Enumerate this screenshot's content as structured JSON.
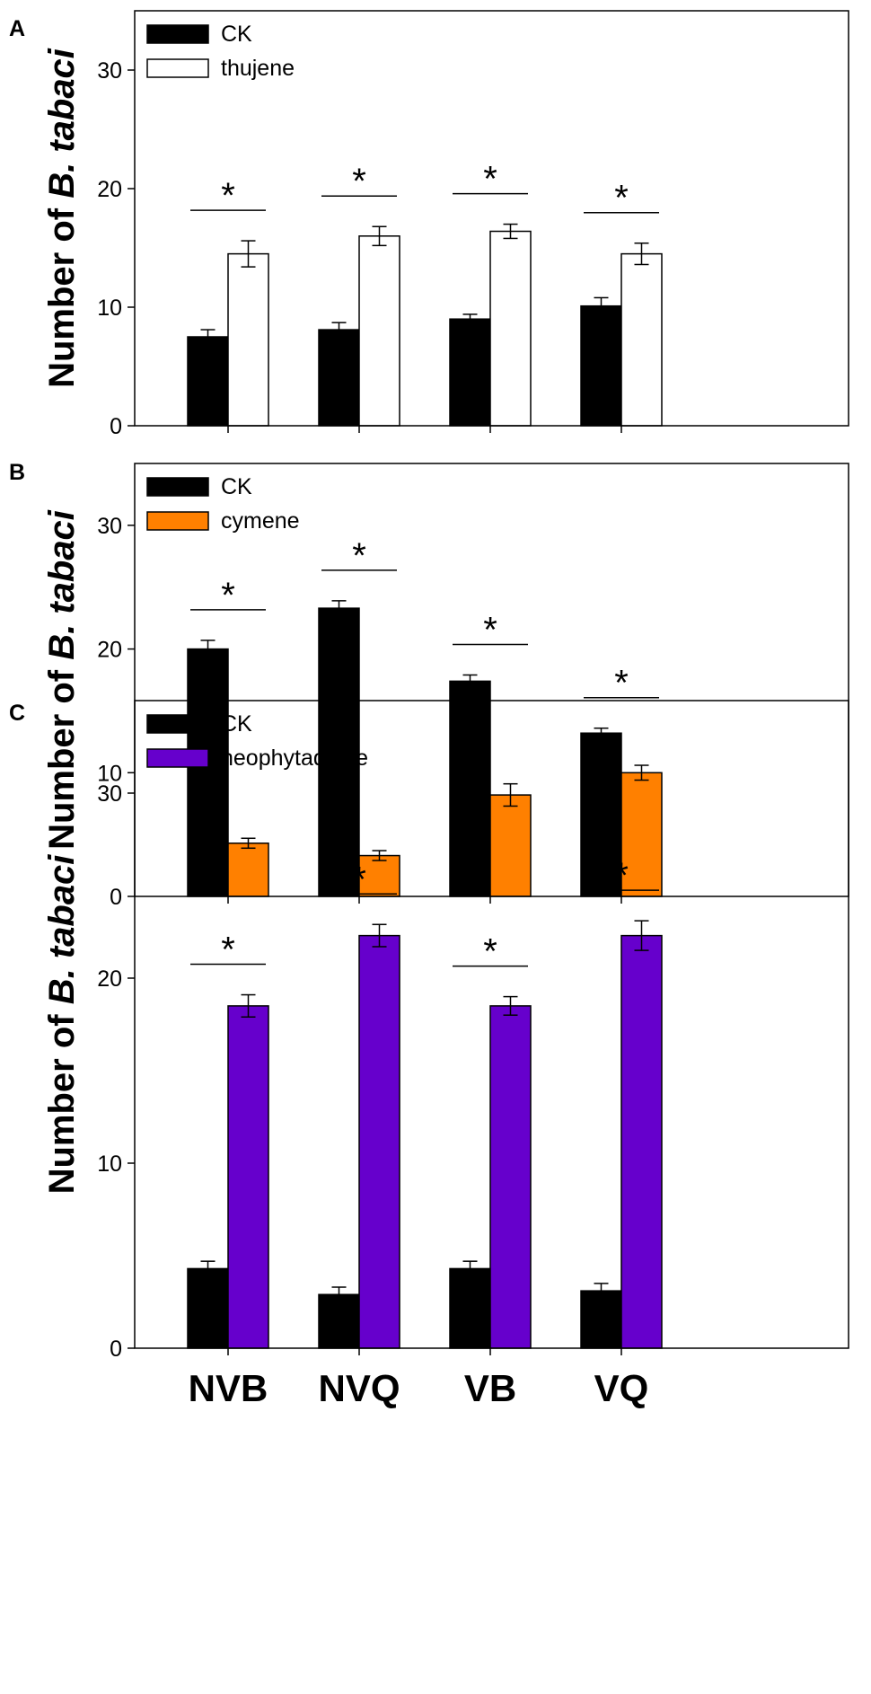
{
  "chart_data": [
    {
      "type": "bar",
      "panel": "A",
      "ylabel_prefix": "Number of ",
      "ylabel_species": "B. tabaci",
      "categories": [
        "NVB",
        "NVQ",
        "VB",
        "VQ"
      ],
      "ylim": [
        0,
        35
      ],
      "yticks": [
        0,
        10,
        20,
        30
      ],
      "series": [
        {
          "name": "CK",
          "color": "#000000",
          "values": [
            7.5,
            8.1,
            9.0,
            10.1
          ],
          "errors": [
            0.6,
            0.6,
            0.4,
            0.7
          ]
        },
        {
          "name": "thujene",
          "color": "#ffffff",
          "values": [
            14.5,
            16.0,
            16.4,
            14.5
          ],
          "errors": [
            1.1,
            0.8,
            0.6,
            0.9
          ]
        }
      ],
      "annotations": [
        {
          "category": "NVB",
          "label": "*"
        },
        {
          "category": "NVQ",
          "label": "*"
        },
        {
          "category": "VB",
          "label": "*"
        },
        {
          "category": "VQ",
          "label": "*"
        }
      ],
      "show_category_labels": false
    },
    {
      "type": "bar",
      "panel": "B",
      "ylabel_prefix": "Number of ",
      "ylabel_species": "B. tabaci",
      "categories": [
        "NVB",
        "NVQ",
        "VB",
        "VQ"
      ],
      "ylim": [
        0,
        35
      ],
      "yticks": [
        0,
        10,
        20,
        30
      ],
      "series": [
        {
          "name": "CK",
          "color": "#000000",
          "values": [
            20.0,
            23.3,
            17.4,
            13.2
          ],
          "errors": [
            0.7,
            0.6,
            0.5,
            0.4
          ]
        },
        {
          "name": "cymene",
          "color": "#ff8000",
          "values": [
            4.3,
            3.3,
            8.2,
            10.0
          ],
          "errors": [
            0.4,
            0.4,
            0.9,
            0.6
          ]
        }
      ],
      "annotations": [
        {
          "category": "NVB",
          "label": "*"
        },
        {
          "category": "NVQ",
          "label": "*"
        },
        {
          "category": "VB",
          "label": "*"
        },
        {
          "category": "VQ",
          "label": "*"
        }
      ],
      "show_category_labels": false
    },
    {
      "type": "bar",
      "panel": "C",
      "ylabel_prefix": "Number of ",
      "ylabel_species": "B. tabaci",
      "categories": [
        "NVB",
        "NVQ",
        "VB",
        "VQ"
      ],
      "ylim": [
        0,
        35
      ],
      "yticks": [
        0,
        10,
        20,
        30
      ],
      "series": [
        {
          "name": "CK",
          "color": "#000000",
          "values": [
            4.3,
            2.9,
            4.3,
            3.1
          ],
          "errors": [
            0.4,
            0.4,
            0.4,
            0.4
          ]
        },
        {
          "name": "neophytadiene",
          "color": "#6600cc",
          "values": [
            18.5,
            22.3,
            18.5,
            22.3
          ],
          "errors": [
            0.6,
            0.6,
            0.5,
            0.8
          ]
        }
      ],
      "annotations": [
        {
          "category": "NVB",
          "label": "*"
        },
        {
          "category": "NVQ",
          "label": "*"
        },
        {
          "category": "VB",
          "label": "*"
        },
        {
          "category": "VQ",
          "label": "*"
        }
      ],
      "show_category_labels": true
    }
  ]
}
